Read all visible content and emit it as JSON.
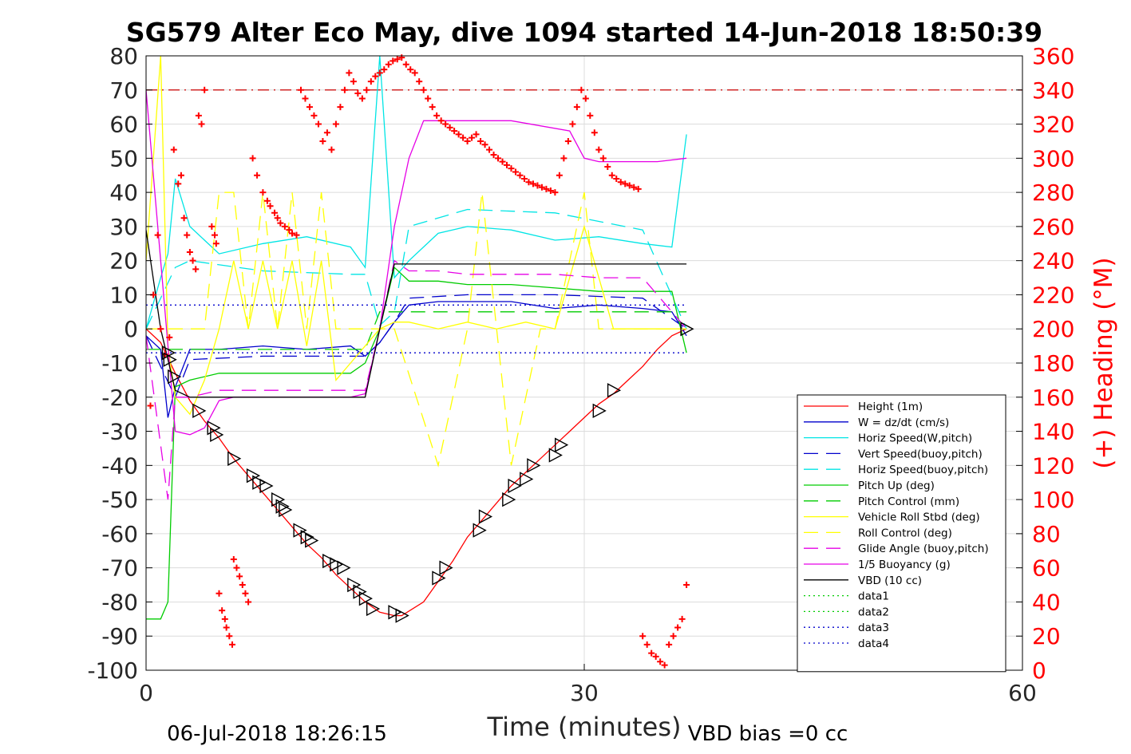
{
  "chart_data": {
    "type": "line",
    "title": "SG579 Alter Eco May, dive 1094 started 14-Jun-2018 18:50:39",
    "xlabel": "Time (minutes)",
    "ylabel_right": "(+) Heading (°M)",
    "footer_left": "06-Jul-2018 18:26:15",
    "footer_right": "VBD bias =0 cc",
    "xlim": [
      0,
      60
    ],
    "ylim": [
      -100,
      80
    ],
    "ylim_right": [
      0,
      360
    ],
    "x_ticks": [
      0,
      30,
      60
    ],
    "y_ticks": [
      80,
      70,
      60,
      50,
      40,
      30,
      20,
      10,
      0,
      -10,
      -20,
      -30,
      -40,
      -50,
      -60,
      -70,
      -80,
      -90,
      -100
    ],
    "y_ticks_right": [
      360,
      340,
      320,
      300,
      280,
      260,
      240,
      220,
      200,
      180,
      160,
      140,
      120,
      100,
      80,
      60,
      40,
      20,
      0
    ],
    "grid": true,
    "legend_position": "bottom-right",
    "colors": {
      "height": "#ff0000",
      "w": "#0000cc",
      "horiz_speed": "#00e5e5",
      "pitch": "#00cc00",
      "roll": "#ffff00",
      "glide": "#e600e6",
      "buoyancy": "#e600e6",
      "vbd": "#000000",
      "heading": "#ff0000"
    },
    "series": [
      {
        "name": "Height (1m)",
        "style": "solid",
        "color": "#ff0000",
        "x": [
          0,
          1,
          2,
          3,
          4,
          5,
          6,
          7,
          8,
          9,
          10,
          11,
          12,
          13,
          14,
          15,
          16,
          17,
          17.5,
          19,
          20,
          21,
          22,
          23,
          24,
          25,
          26,
          27,
          28,
          29,
          30,
          31,
          32,
          33,
          34,
          35,
          36,
          37
        ],
        "y": [
          0,
          -4,
          -13,
          -21,
          -27,
          -32,
          -38,
          -43,
          -48,
          -53,
          -58,
          -63,
          -67,
          -72,
          -76,
          -80,
          -83,
          -84,
          -84,
          -80,
          -74,
          -68,
          -61,
          -56,
          -51,
          -46,
          -42,
          -38,
          -34,
          -30,
          -26,
          -22,
          -19,
          -15,
          -11,
          -6,
          -2,
          0
        ]
      },
      {
        "name": "W = dz/dt (cm/s)",
        "style": "solid",
        "color": "#0000cc",
        "x": [
          0,
          1,
          1.5,
          2,
          3,
          5,
          8,
          11,
          14,
          15,
          16,
          17,
          18,
          20,
          22,
          25,
          28,
          31,
          34,
          36,
          37
        ],
        "y": [
          -2,
          -6,
          -26,
          -17,
          -6,
          -6,
          -5,
          -6,
          -5,
          -8,
          -4,
          2,
          7,
          8,
          8,
          8,
          6,
          7,
          6,
          5,
          -2
        ]
      },
      {
        "name": "Horiz Speed(W,pitch)",
        "style": "solid",
        "color": "#00e5e5",
        "x": [
          0,
          1,
          1.5,
          2,
          3,
          5,
          8,
          11,
          14,
          15,
          16,
          17,
          18,
          20,
          22,
          25,
          28,
          31,
          34,
          36,
          37
        ],
        "y": [
          0,
          15,
          22,
          44,
          30,
          22,
          25,
          27,
          24,
          18,
          80,
          15,
          20,
          28,
          30,
          29,
          26,
          27,
          25,
          24,
          57
        ]
      },
      {
        "name": "Vert Speed(buoy,pitch)",
        "style": "dashed",
        "color": "#0000cc",
        "x": [
          0,
          2,
          3,
          8,
          14,
          15,
          16,
          17,
          18,
          22,
          28,
          34,
          37
        ],
        "y": [
          -2,
          -20,
          -9,
          -8,
          -8,
          -8,
          -4,
          2,
          9,
          10,
          10,
          9,
          0
        ]
      },
      {
        "name": "Horiz Speed(buoy,pitch)",
        "style": "dashed",
        "color": "#00e5e5",
        "x": [
          0,
          2,
          3,
          8,
          14,
          15,
          16,
          17,
          18,
          22,
          28,
          34,
          37
        ],
        "y": [
          0,
          18,
          20,
          17,
          16,
          16,
          1,
          5,
          30,
          35,
          34,
          29,
          0
        ]
      },
      {
        "name": "Pitch Up (deg)",
        "style": "solid",
        "color": "#00cc00",
        "x": [
          0,
          1,
          1.5,
          2,
          3,
          5,
          8,
          11,
          14,
          15,
          16,
          17,
          18,
          20,
          22,
          25,
          28,
          31,
          34,
          36,
          37
        ],
        "y": [
          -85,
          -85,
          -80,
          -17,
          -15,
          -13,
          -13,
          -13,
          -13,
          -10,
          0,
          18,
          14,
          14,
          13,
          13,
          12,
          11,
          11,
          11,
          -7
        ]
      },
      {
        "name": "Pitch Control (mm)",
        "style": "dashed",
        "color": "#00cc00",
        "x": [
          0,
          2,
          3,
          15,
          16,
          17,
          18,
          37
        ],
        "y": [
          -6,
          -6,
          -6,
          -6,
          5,
          5,
          5,
          5
        ]
      },
      {
        "name": "Vehicle Roll Stbd (deg)",
        "style": "solid",
        "color": "#ffff00",
        "x": [
          0,
          1,
          1.5,
          2,
          3,
          4,
          5,
          6,
          7,
          8,
          9,
          10,
          11,
          12,
          13,
          14,
          15,
          16,
          17,
          18,
          20,
          22,
          24,
          26,
          28,
          30,
          32,
          34,
          36,
          37
        ],
        "y": [
          20,
          80,
          -5,
          -20,
          -25,
          -15,
          0,
          20,
          0,
          20,
          0,
          20,
          -5,
          20,
          -15,
          -10,
          -5,
          0,
          2,
          2,
          0,
          2,
          0,
          2,
          0,
          30,
          0,
          0,
          0,
          0
        ]
      },
      {
        "name": "Roll Control (deg)",
        "style": "dashed",
        "color": "#ffff00",
        "x": [
          0,
          2,
          4,
          5,
          6,
          7,
          8,
          9,
          10,
          11,
          12,
          13,
          14,
          15,
          16,
          17,
          20,
          22,
          23,
          25,
          27,
          28,
          30,
          31,
          33,
          35,
          37
        ],
        "y": [
          0,
          0,
          0,
          40,
          40,
          0,
          40,
          0,
          40,
          0,
          40,
          0,
          0,
          0,
          0,
          0,
          -40,
          0,
          40,
          -40,
          0,
          0,
          40,
          0,
          0,
          0,
          0
        ]
      },
      {
        "name": "Glide Angle (buoy,pitch)",
        "style": "dashed",
        "color": "#e600e6",
        "x": [
          0,
          1.5,
          2,
          3,
          5,
          8,
          11,
          14,
          15,
          16,
          17,
          18,
          20,
          22,
          25,
          28,
          31,
          34,
          37
        ],
        "y": [
          -2,
          -50,
          -20,
          -20,
          -18,
          -18,
          -18,
          -18,
          -18,
          0,
          20,
          17,
          17,
          16,
          16,
          16,
          15,
          15,
          0
        ]
      },
      {
        "name": "1/5 Buoyancy (g)",
        "style": "solid",
        "color": "#e600e6",
        "x": [
          0,
          1,
          2,
          3,
          4,
          5,
          6,
          8,
          10,
          12,
          14,
          15,
          16,
          17,
          18,
          19,
          20,
          25,
          29,
          30,
          31,
          32,
          35,
          37
        ],
        "y": [
          70,
          20,
          -30,
          -31,
          -29,
          -21,
          -20,
          -20,
          -20,
          -20,
          -20,
          -19,
          0,
          30,
          50,
          61,
          61,
          61,
          58,
          50,
          49,
          49,
          49,
          50
        ]
      },
      {
        "name": "VBD (10 cc)",
        "style": "solid",
        "color": "#000000",
        "x": [
          0,
          1,
          2,
          3,
          14,
          15,
          16,
          17,
          18,
          37
        ],
        "y": [
          29,
          0,
          -18,
          -20,
          -20,
          -20,
          0,
          19,
          19,
          19
        ]
      },
      {
        "name": "data1",
        "style": "dotted",
        "color": "#00cc00",
        "x": [],
        "y": []
      },
      {
        "name": "data2",
        "style": "dotted",
        "color": "#00cc00",
        "x": [],
        "y": []
      },
      {
        "name": "data3",
        "style": "dotted",
        "color": "#0000cc",
        "x": [
          0,
          37
        ],
        "y": [
          7,
          7
        ]
      },
      {
        "name": "data4",
        "style": "dotted",
        "color": "#0000cc",
        "x": [
          0,
          37
        ],
        "y": [
          -7,
          -7
        ]
      }
    ],
    "reference_line": {
      "y": 70,
      "style": "dashdot",
      "color": "#cc0000"
    },
    "heading_points": {
      "x": [
        0.3,
        0.5,
        0.8,
        1.0,
        1.3,
        1.6,
        1.9,
        2.2,
        2.4,
        2.6,
        2.8,
        3.0,
        3.2,
        3.4,
        3.6,
        3.8,
        4.0,
        4.5,
        4.7,
        4.8,
        5.0,
        5.2,
        5.4,
        5.5,
        5.7,
        5.9,
        6.0,
        6.2,
        6.4,
        6.6,
        6.8,
        7.0,
        7.3,
        7.6,
        8.0,
        8.3,
        8.5,
        8.8,
        9.0,
        9.2,
        9.5,
        9.8,
        10.0,
        10.3,
        10.6,
        10.9,
        11.2,
        11.5,
        11.8,
        12.1,
        12.4,
        12.7,
        13.0,
        13.3,
        13.6,
        13.9,
        14.2,
        14.5,
        14.8,
        15.1,
        15.4,
        15.7,
        16.0,
        16.3,
        16.6,
        16.9,
        17.2,
        17.5,
        17.8,
        18.1,
        18.4,
        18.7,
        19.0,
        19.3,
        19.6,
        19.9,
        20.2,
        20.5,
        20.8,
        21.1,
        21.4,
        21.7,
        22.0,
        22.3,
        22.6,
        22.9,
        23.2,
        23.5,
        23.8,
        24.1,
        24.4,
        24.7,
        25.0,
        25.3,
        25.6,
        25.9,
        26.2,
        26.5,
        26.8,
        27.1,
        27.4,
        27.7,
        28.0,
        28.3,
        28.6,
        28.9,
        29.2,
        29.5,
        29.8,
        30.1,
        30.4,
        30.7,
        31.0,
        31.3,
        31.6,
        31.9,
        32.2,
        32.5,
        32.8,
        33.1,
        33.4,
        33.7,
        34.0,
        34.3,
        34.6,
        34.9,
        35.2,
        35.5,
        35.8,
        36.1,
        36.4,
        36.7,
        37.0
      ],
      "y": [
        155,
        220,
        255,
        200,
        185,
        195,
        305,
        285,
        290,
        265,
        255,
        245,
        240,
        235,
        325,
        320,
        340,
        260,
        255,
        250,
        45,
        35,
        30,
        25,
        20,
        15,
        65,
        60,
        55,
        50,
        45,
        40,
        300,
        290,
        280,
        275,
        272,
        268,
        265,
        262,
        260,
        258,
        256,
        255,
        340,
        335,
        330,
        325,
        320,
        310,
        315,
        305,
        320,
        330,
        340,
        350,
        345,
        338,
        335,
        340,
        345,
        348,
        350,
        352,
        355,
        357,
        358,
        359,
        355,
        352,
        350,
        345,
        340,
        335,
        330,
        325,
        322,
        320,
        318,
        316,
        314,
        312,
        310,
        312,
        314,
        310,
        308,
        305,
        302,
        300,
        298,
        296,
        294,
        292,
        290,
        288,
        286,
        285,
        284,
        283,
        282,
        281,
        280,
        290,
        300,
        310,
        320,
        330,
        340,
        335,
        325,
        315,
        305,
        300,
        295,
        290,
        288,
        286,
        285,
        284,
        283,
        282,
        20,
        15,
        10,
        8,
        5,
        3,
        15,
        20,
        25,
        30,
        50
      ]
    },
    "triangles": {
      "x": [
        1.5,
        1.6,
        1.9,
        3.6,
        4.6,
        4.8,
        6.0,
        7.3,
        7.7,
        8.2,
        9.0,
        9.3,
        9.5,
        10.5,
        11.0,
        11.3,
        12.5,
        13.0,
        13.5,
        14.2,
        14.6,
        15.0,
        15.5,
        17.0,
        17.5,
        20.0,
        20.5,
        22.8,
        23.2,
        24.8,
        25.2,
        26.0,
        26.5,
        28.0,
        28.4,
        31.0,
        32.0,
        37.0
      ],
      "y": [
        -7,
        -9,
        -14,
        -24,
        -29,
        -31,
        -38,
        -43,
        -45,
        -46,
        -50,
        -52,
        -53,
        -59,
        -61,
        -62,
        -68,
        -69,
        -70,
        -75,
        -77,
        -79,
        -82,
        -83,
        -84,
        -73,
        -70,
        -59,
        -55,
        -50,
        -46,
        -44,
        -40,
        -37,
        -34,
        -24,
        -18,
        0
      ]
    }
  }
}
